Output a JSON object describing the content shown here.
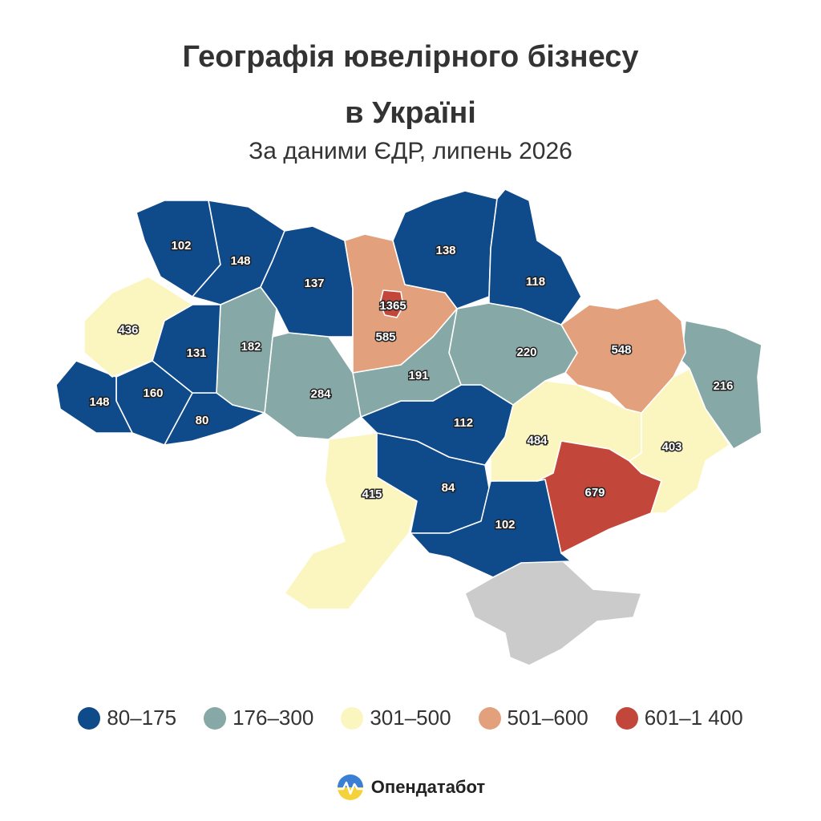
{
  "title_line1": "Географія ювелірного бізнесу",
  "title_line2": "в Україні",
  "subtitle": "За даними ЄДР, липень 2026",
  "colors": {
    "c1": "#0f4a8a",
    "c2": "#86a8a6",
    "c3": "#fbf6bf",
    "c4": "#e3a07d",
    "c5": "#c3463b",
    "occupied": "#cbcbcb"
  },
  "legend": [
    {
      "label": "80–175",
      "color": "#0f4a8a"
    },
    {
      "label": "176–300",
      "color": "#86a8a6"
    },
    {
      "label": "301–500",
      "color": "#fbf6bf"
    },
    {
      "label": "501–600",
      "color": "#e3a07d"
    },
    {
      "label": "601–1 400",
      "color": "#c3463b"
    }
  ],
  "regions": {
    "volyn": "102",
    "rivne": "148",
    "zhytomyr": "137",
    "kyiv_city": "1365",
    "kyiv_obl": "585",
    "chernihiv": "138",
    "sumy": "118",
    "lviv": "436",
    "ternopil": "131",
    "khmelnytskyi": "182",
    "zakarpattia": "148",
    "ivano_frankivsk": "160",
    "chernivtsi": "80",
    "vinnytsia": "284",
    "cherkasy": "191",
    "poltava": "220",
    "kharkiv": "548",
    "luhansk": "216",
    "kirovohrad": "112",
    "dnipro": "484",
    "donetsk": "403",
    "zaporizhzhia": "679",
    "odesa": "415",
    "mykolaiv": "84",
    "kherson": "102"
  },
  "brand": "Опендатабот"
}
